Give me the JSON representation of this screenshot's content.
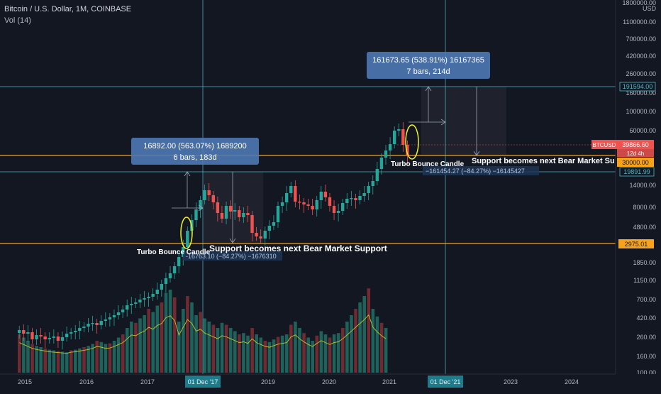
{
  "header": {
    "title": "Bitcoin / U.S. Dollar, 1M, COINBASE",
    "indicator": "Vol (14)"
  },
  "price_axis": {
    "currency": "USD",
    "ticks": [
      "1800000.00",
      "1100000.00",
      "700000.00",
      "420000.00",
      "260000.00",
      "160000.00",
      "100000.00",
      "60000.00",
      "14000.00",
      "8000.00",
      "4800.00",
      "1850.00",
      "1150.00",
      "700.00",
      "420.00",
      "260.00",
      "160.00",
      "100.00"
    ],
    "badges": {
      "level_191594": "191594.00",
      "btcusd_label": "BTCUSD",
      "btcusd_price": "39866.60",
      "countdown": "12d 4h",
      "level_30000": "30000.00",
      "level_19891": "19891.99",
      "level_2975": "2975.01"
    }
  },
  "time_axis": {
    "labels": [
      "2015",
      "2016",
      "2017",
      "2019",
      "2020",
      "2021",
      "2023",
      "2024"
    ],
    "highlights": [
      "01 Dec '17",
      "01 Dec '21"
    ]
  },
  "annotations": {
    "measure_2017": {
      "line1": "16892.00 (563.07%) 1689200",
      "line2": "6 bars, 183d"
    },
    "measure_2021": {
      "line1": "161673.65 (538.91%) 16167365",
      "line2": "7 bars, 214d"
    },
    "drop_2018": "-16763.10 (−84.27%) −1676310",
    "drop_2022": "−161454.27 (−84.27%) −16145427",
    "turbo_1": "Turbo Bounce Candle",
    "turbo_2": "Turbo Bounce Candle",
    "support_1": "Support becomes next Bear Market Support",
    "support_2": "Support becomes next Bear Market Support"
  },
  "colors": {
    "background": "#131722",
    "bull": "#26a69a",
    "bear": "#ef5350",
    "support_line": "#f7a21b",
    "level_line": "#4fb7c9",
    "measure_box": "#4f79b4",
    "ellipse": "#f1f127",
    "volume_ma": "#c9c12a"
  }
}
